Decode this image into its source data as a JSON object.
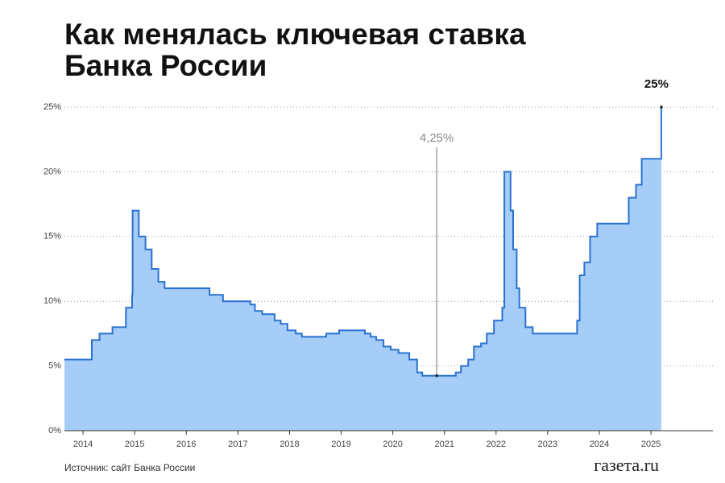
{
  "chart_data": {
    "type": "step-area",
    "title": [
      "Как менялась ключевая ставка",
      "Банка России"
    ],
    "source": "Источник: сайт Банка России",
    "logo": "газета.ru",
    "color": "#2a72d0",
    "fill": "#a6cdf7",
    "grid": true,
    "x": [
      2013.64,
      2014.17,
      2014.32,
      2014.57,
      2014.83,
      2014.95,
      2014.96,
      2015.08,
      2015.21,
      2015.33,
      2015.46,
      2015.58,
      2016.45,
      2016.71,
      2017.24,
      2017.33,
      2017.47,
      2017.71,
      2017.83,
      2017.96,
      2018.12,
      2018.24,
      2018.71,
      2018.96,
      2019.46,
      2019.57,
      2019.68,
      2019.82,
      2019.96,
      2020.11,
      2020.32,
      2020.47,
      2020.57,
      2021.22,
      2021.32,
      2021.46,
      2021.57,
      2021.71,
      2021.82,
      2021.96,
      2022.12,
      2022.16,
      2022.28,
      2022.33,
      2022.4,
      2022.45,
      2022.57,
      2022.71,
      2023.57,
      2023.62,
      2023.71,
      2023.82,
      2023.96,
      2024.57,
      2024.71,
      2024.82,
      2025.2
    ],
    "values": [
      5.5,
      7.0,
      7.5,
      8.0,
      9.5,
      10.5,
      17.0,
      15.0,
      14.0,
      12.5,
      11.5,
      11.0,
      10.5,
      10.0,
      9.75,
      9.25,
      9.0,
      8.5,
      8.25,
      7.75,
      7.5,
      7.25,
      7.5,
      7.75,
      7.5,
      7.25,
      7.0,
      6.5,
      6.25,
      6.0,
      5.5,
      4.5,
      4.25,
      4.5,
      5.0,
      5.5,
      6.5,
      6.75,
      7.5,
      8.5,
      9.5,
      20.0,
      17.0,
      14.0,
      11.0,
      9.5,
      8.0,
      7.5,
      8.5,
      12.0,
      13.0,
      15.0,
      16.0,
      18.0,
      19.0,
      21.0,
      25.0
    ],
    "xlim": [
      2013.64,
      2026.2
    ],
    "xticks": [
      2014,
      2015,
      2016,
      2017,
      2018,
      2019,
      2020,
      2021,
      2022,
      2023,
      2024,
      2025
    ],
    "ylim": [
      0,
      25
    ],
    "yticks": [
      {
        "value": 0,
        "label": "0%"
      },
      {
        "value": 5,
        "label": "5%"
      },
      {
        "value": 10,
        "label": "10%"
      },
      {
        "value": 15,
        "label": "15%"
      },
      {
        "value": 20,
        "label": "20%"
      },
      {
        "value": 25,
        "label": "25%"
      }
    ],
    "annotations": [
      {
        "x": 2020.85,
        "value": 4.25,
        "label": "4,25%"
      },
      {
        "x": 2025.2,
        "value": 25,
        "label": "25%"
      }
    ]
  }
}
